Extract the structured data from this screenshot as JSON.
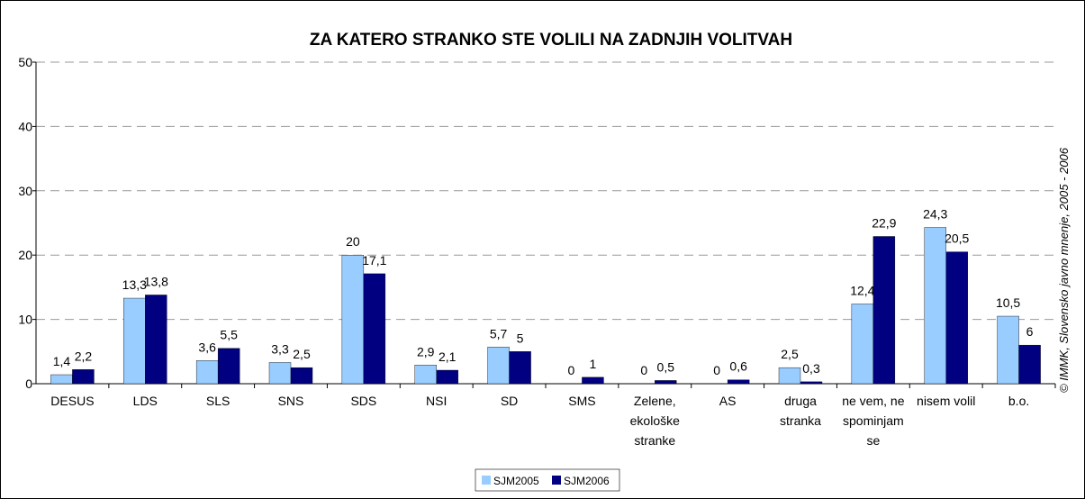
{
  "chart_data": {
    "type": "bar",
    "title": "ZA KATERO STRANKO STE VOLILI NA ZADNJIH VOLITVAH",
    "source": "© IMMK, Slovensko javno mnenje, 2005 - 2006",
    "categories": [
      "DESUS",
      "LDS",
      "SLS",
      "SNS",
      "SDS",
      "NSI",
      "SD",
      "SMS",
      "Zelene, ekološke stranke",
      "AS",
      "druga stranka",
      "ne vem, ne spominjam se",
      "nisem volil",
      "b.o."
    ],
    "series": [
      {
        "name": "SJM2005",
        "color": "#99ccff",
        "values": [
          1.4,
          13.3,
          3.6,
          3.3,
          20,
          2.9,
          5.7,
          0,
          0,
          0,
          2.5,
          12.4,
          24.3,
          10.5
        ],
        "value_labels": [
          "1,4",
          "13,3",
          "3,6",
          "3,3",
          "20",
          "2,9",
          "5,7",
          "0",
          "0",
          "0",
          "2,5",
          "12,4",
          "24,3",
          "10,5"
        ]
      },
      {
        "name": "SJM2006",
        "color": "#000080",
        "values": [
          2.2,
          13.8,
          5.5,
          2.5,
          17.1,
          2.1,
          5,
          1,
          0.5,
          0.6,
          0.3,
          22.9,
          20.5,
          6
        ],
        "value_labels": [
          "2,2",
          "13,8",
          "5,5",
          "2,5",
          "17,1",
          "2,1",
          "5",
          "1",
          "0,5",
          "0,6",
          "0,3",
          "22,9",
          "20,5",
          "6"
        ]
      }
    ],
    "ylim": [
      0,
      50
    ],
    "yticks": [
      0,
      10,
      20,
      30,
      40,
      50
    ],
    "grid": true,
    "legend": "bottom"
  }
}
